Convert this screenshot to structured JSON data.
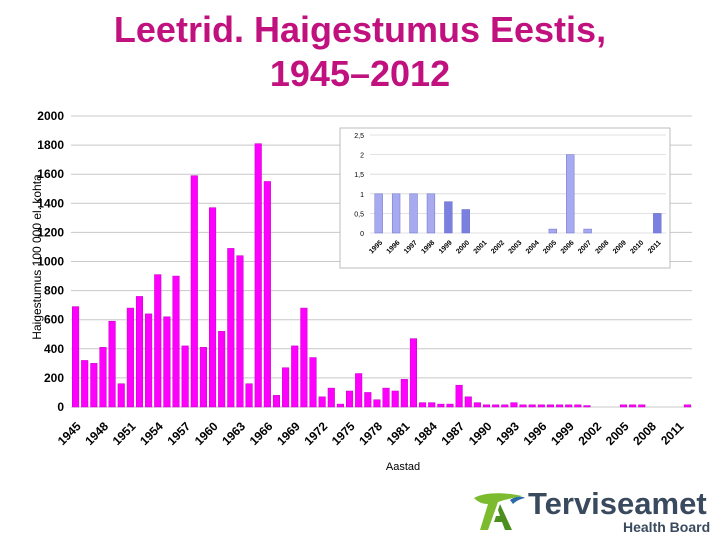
{
  "title_line1": "Leetrid. Haigestumus Eestis,",
  "title_line2": "1945–2012",
  "logo": {
    "name": "Terviseamet",
    "subtitle": "Health Board",
    "mark": "TA"
  },
  "colors": {
    "title": "#c0117f",
    "bars": "#ff00ff",
    "bars_stroke": "#c000c0",
    "inset_bars": "#a7aaee",
    "inset_bars_stroke": "#6b6fcf",
    "inset_bar_dark": "#7a7fe0"
  },
  "chart_data": [
    {
      "type": "bar",
      "title": "",
      "xlabel": "Aastad",
      "ylabel": "Haigestumus 100 000 el. kohta",
      "ylim": [
        0,
        2000
      ],
      "yticks": [
        "0",
        "200",
        "400",
        "600",
        "800",
        "1000",
        "1200",
        "1400",
        "1600",
        "1800",
        "2000"
      ],
      "x_tick_labels": [
        "1945",
        "1948",
        "1951",
        "1954",
        "1957",
        "1960",
        "1963",
        "1966",
        "1969",
        "1972",
        "1975",
        "1978",
        "1981",
        "1984",
        "1987",
        "1990",
        "1993",
        "1996",
        "1999",
        "2002",
        "2005",
        "2008",
        "2011"
      ],
      "grid": true,
      "categories": [
        "1945",
        "1946",
        "1947",
        "1948",
        "1949",
        "1950",
        "1951",
        "1952",
        "1953",
        "1954",
        "1955",
        "1956",
        "1957",
        "1958",
        "1959",
        "1960",
        "1961",
        "1962",
        "1963",
        "1964",
        "1965",
        "1966",
        "1967",
        "1968",
        "1969",
        "1970",
        "1971",
        "1972",
        "1973",
        "1974",
        "1975",
        "1976",
        "1977",
        "1978",
        "1979",
        "1980",
        "1981",
        "1982",
        "1983",
        "1984",
        "1985",
        "1986",
        "1987",
        "1988",
        "1989",
        "1990",
        "1991",
        "1992",
        "1993",
        "1994",
        "1995",
        "1996",
        "1997",
        "1998",
        "1999",
        "2000",
        "2001",
        "2002",
        "2003",
        "2004",
        "2005",
        "2006",
        "2007",
        "2008",
        "2009",
        "2010",
        "2011",
        "2012"
      ],
      "values": [
        690,
        320,
        300,
        410,
        590,
        160,
        680,
        760,
        640,
        910,
        620,
        900,
        420,
        1590,
        410,
        1370,
        520,
        1090,
        1040,
        160,
        1810,
        1550,
        80,
        270,
        420,
        680,
        340,
        70,
        130,
        20,
        110,
        230,
        100,
        50,
        130,
        110,
        190,
        470,
        30,
        30,
        20,
        20,
        150,
        70,
        30,
        15,
        15,
        15,
        30,
        15,
        15,
        15,
        15,
        15,
        15,
        15,
        10,
        0,
        0,
        0,
        15,
        15,
        15,
        0,
        0,
        0,
        0,
        15
      ]
    },
    {
      "type": "bar",
      "title": "",
      "xlabel": "",
      "ylabel": "",
      "ylim": [
        0,
        2.5
      ],
      "yticks": [
        "0",
        "0,5",
        "1",
        "1,5",
        "2",
        "2,5"
      ],
      "grid": true,
      "categories": [
        "1995",
        "1996",
        "1997",
        "1998",
        "1999",
        "2000",
        "2001",
        "2002",
        "2003",
        "2004",
        "2005",
        "2006",
        "2007",
        "2008",
        "2009",
        "2010",
        "2011"
      ],
      "values": [
        1.0,
        1.0,
        1.0,
        1.0,
        0.8,
        0.6,
        0,
        0,
        0,
        0,
        0.1,
        2.0,
        0.1,
        0,
        0,
        0,
        0.5
      ]
    }
  ]
}
